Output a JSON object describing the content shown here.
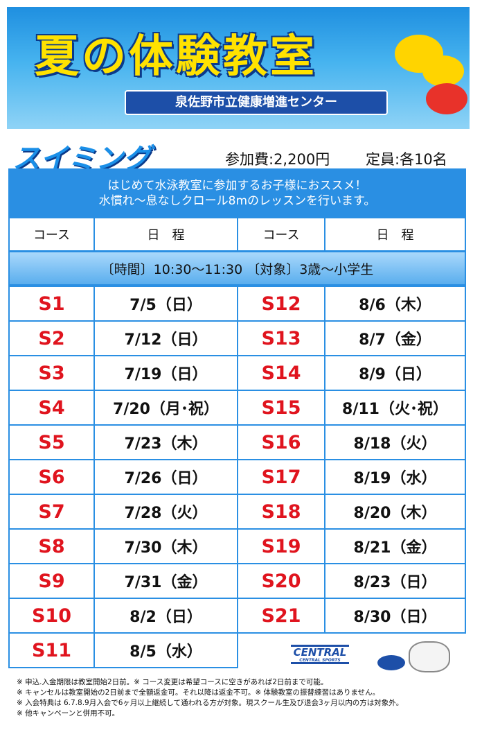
{
  "header": {
    "title": "夏の体験教室",
    "subtitle": "泉佐野市立健康増進センター"
  },
  "program": {
    "name": "スイミング",
    "fee": "参加費:2,200円",
    "capacity": "定員:各10名"
  },
  "intro": [
    "はじめて水泳教室に参加するお子様におススメ！",
    "水慣れ〜息なしクロール8mのレッスンを行います。"
  ],
  "table": {
    "headers": [
      "コース",
      "日　程",
      "コース",
      "日　程"
    ],
    "info": "〔時間〕10:30〜11:30 〔対象〕3歳〜小学生",
    "left": [
      [
        "S1",
        "7/5（日）"
      ],
      [
        "S2",
        "7/12（日）"
      ],
      [
        "S3",
        "7/19（日）"
      ],
      [
        "S4",
        "7/20（月･祝）"
      ],
      [
        "S5",
        "7/23（木）"
      ],
      [
        "S6",
        "7/26（日）"
      ],
      [
        "S7",
        "7/28（火）"
      ],
      [
        "S8",
        "7/30（木）"
      ],
      [
        "S9",
        "7/31（金）"
      ],
      [
        "S10",
        "8/2（日）"
      ],
      [
        "S11",
        "8/5（水）"
      ]
    ],
    "right": [
      [
        "S12",
        "8/6（木）"
      ],
      [
        "S13",
        "8/7（金）"
      ],
      [
        "S14",
        "8/9（日）"
      ],
      [
        "S15",
        "8/11（火･祝）"
      ],
      [
        "S16",
        "8/18（火）"
      ],
      [
        "S17",
        "8/19（水）"
      ],
      [
        "S18",
        "8/20（木）"
      ],
      [
        "S19",
        "8/21（金）"
      ],
      [
        "S20",
        "8/23（日）"
      ],
      [
        "S21",
        "8/30（日）"
      ]
    ]
  },
  "logo": {
    "brand": "CENTRAL",
    "sub": "CENTRAL SPORTS"
  },
  "notes": [
    "※ 申込.入金期限は教室開始2日前。※ コース変更は希望コースに空きがあれば2日前まで可能。",
    "※ キャンセルは教室開始の2日前まで全額返金可。それ以降は返金不可。※ 体験教室の振替練習はありません。",
    "※ 入会特典は 6.7.8.9月入会で6ヶ月以上継続して通われる方が対象。現スクール生及び退会3ヶ月以内の方は対象外。",
    "※ 他キャンペーンと併用不可。"
  ]
}
